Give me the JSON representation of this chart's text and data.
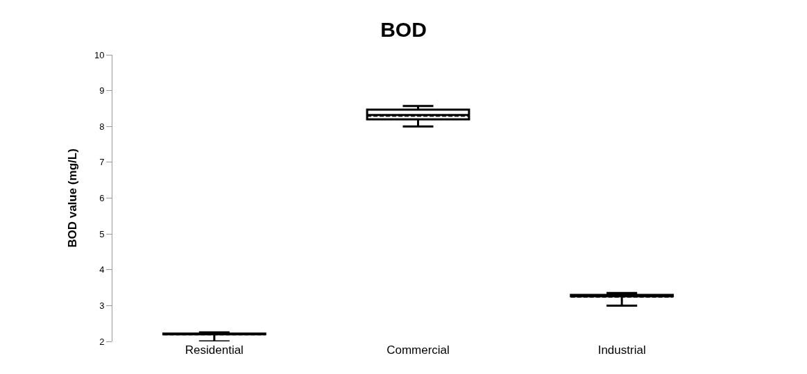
{
  "chart_data": {
    "type": "box",
    "title": "BOD",
    "ylabel": "BOD value (mg/L)",
    "categories": [
      "Residential",
      "Commercial",
      "Industrial"
    ],
    "series": [
      {
        "color": "#000000",
        "boxes": [
          {
            "low": 2.0,
            "q1": 2.2,
            "median": 2.21,
            "q3": 2.22,
            "high": 2.25,
            "mean": 2.2
          },
          {
            "low": 8.0,
            "q1": 8.2,
            "median": 8.32,
            "q3": 8.47,
            "high": 8.57,
            "mean": 8.3
          },
          {
            "low": 3.0,
            "q1": 3.26,
            "median": 3.28,
            "q3": 3.3,
            "high": 3.35,
            "mean": 3.25
          }
        ]
      }
    ],
    "ylim": [
      2,
      10
    ],
    "yticks": [
      2,
      3,
      4,
      5,
      6,
      7,
      8,
      9,
      10
    ]
  }
}
